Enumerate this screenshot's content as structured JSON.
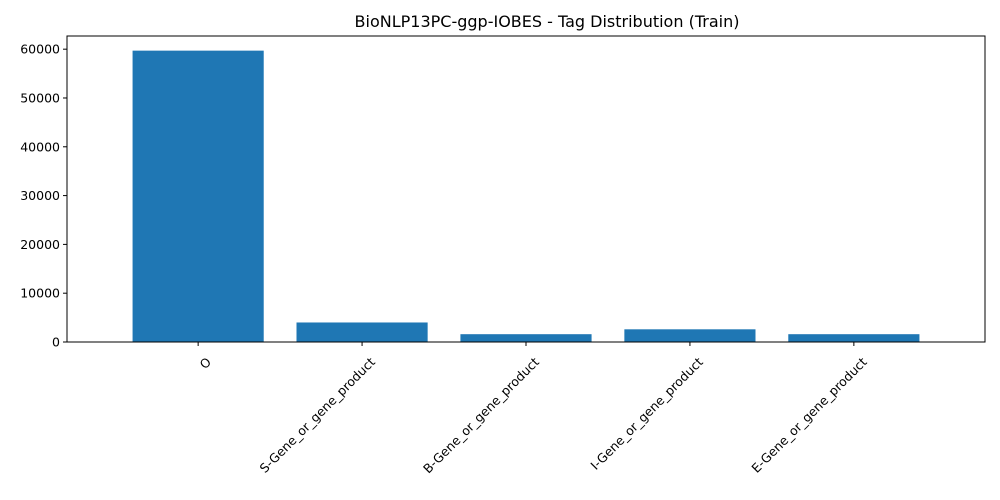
{
  "chart_data": {
    "type": "bar",
    "title": "BioNLP13PC-ggp-IOBES - Tag Distribution (Train)",
    "xlabel": "",
    "ylabel": "",
    "categories": [
      "O",
      "S-Gene_or_gene_product",
      "B-Gene_or_gene_product",
      "I-Gene_or_gene_product",
      "E-Gene_or_gene_product"
    ],
    "values": [
      59700,
      4000,
      1600,
      2600,
      1600
    ],
    "ylim": [
      0,
      62700
    ],
    "yticks": [
      0,
      10000,
      20000,
      30000,
      40000,
      50000,
      60000
    ],
    "ytick_labels": [
      "0",
      "10000",
      "20000",
      "30000",
      "40000",
      "50000",
      "60000"
    ],
    "xtick_rotation_deg": 45,
    "bar_color": "#1f77b4",
    "grid": false,
    "legend": "none"
  }
}
